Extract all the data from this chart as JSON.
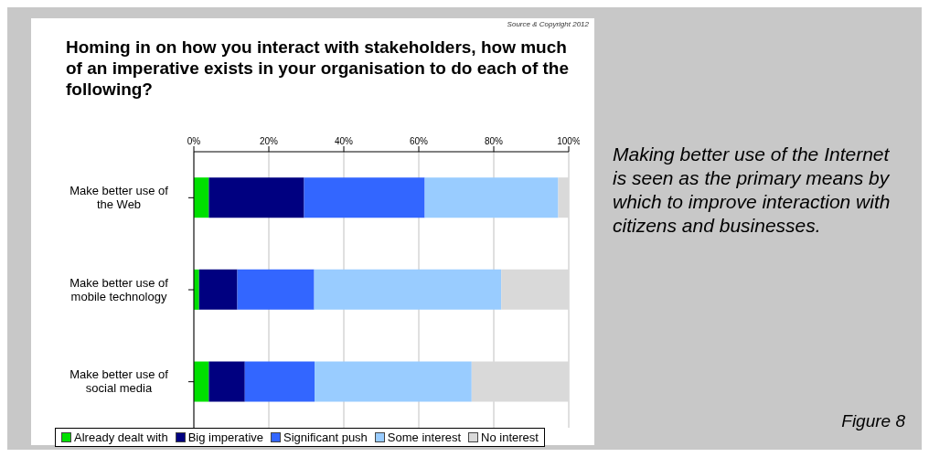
{
  "chart_data": {
    "type": "bar",
    "orientation": "horizontal",
    "stacked": true,
    "title": "Homing in on how you interact with stakeholders, how much of an imperative exists in your organisation to do each of the following?",
    "categories": [
      "Make better use of the Web",
      "Make better use of mobile technology",
      "Make better use of social media"
    ],
    "series": [
      {
        "name": "Already dealt with",
        "color": "#00e000",
        "values": [
          4.0,
          1.4,
          4.0
        ]
      },
      {
        "name": "Big imperative",
        "color": "#000080",
        "values": [
          25.4,
          10.2,
          9.6
        ]
      },
      {
        "name": "Significant push",
        "color": "#3366ff",
        "values": [
          32.2,
          20.5,
          18.6
        ]
      },
      {
        "name": "Some interest",
        "color": "#99ccff",
        "values": [
          35.6,
          49.9,
          41.9
        ]
      },
      {
        "name": "No interest",
        "color": "#d9d9d9",
        "values": [
          2.8,
          18.0,
          25.9
        ]
      }
    ],
    "xlim": [
      0,
      100
    ],
    "xticks": [
      {
        "value": 0,
        "label": "0%"
      },
      {
        "value": 20,
        "label": "20%"
      },
      {
        "value": 40,
        "label": "40%"
      },
      {
        "value": 60,
        "label": "60%"
      },
      {
        "value": 80,
        "label": "80%"
      },
      {
        "value": 100,
        "label": "100%"
      }
    ],
    "grid": "x",
    "legend": "bottom",
    "annotations": [
      "Source & Copyright 2012",
      "Making better use of the Internet is seen as the primary means by which to improve interaction with citizens and businesses.",
      "Figure 8"
    ]
  }
}
